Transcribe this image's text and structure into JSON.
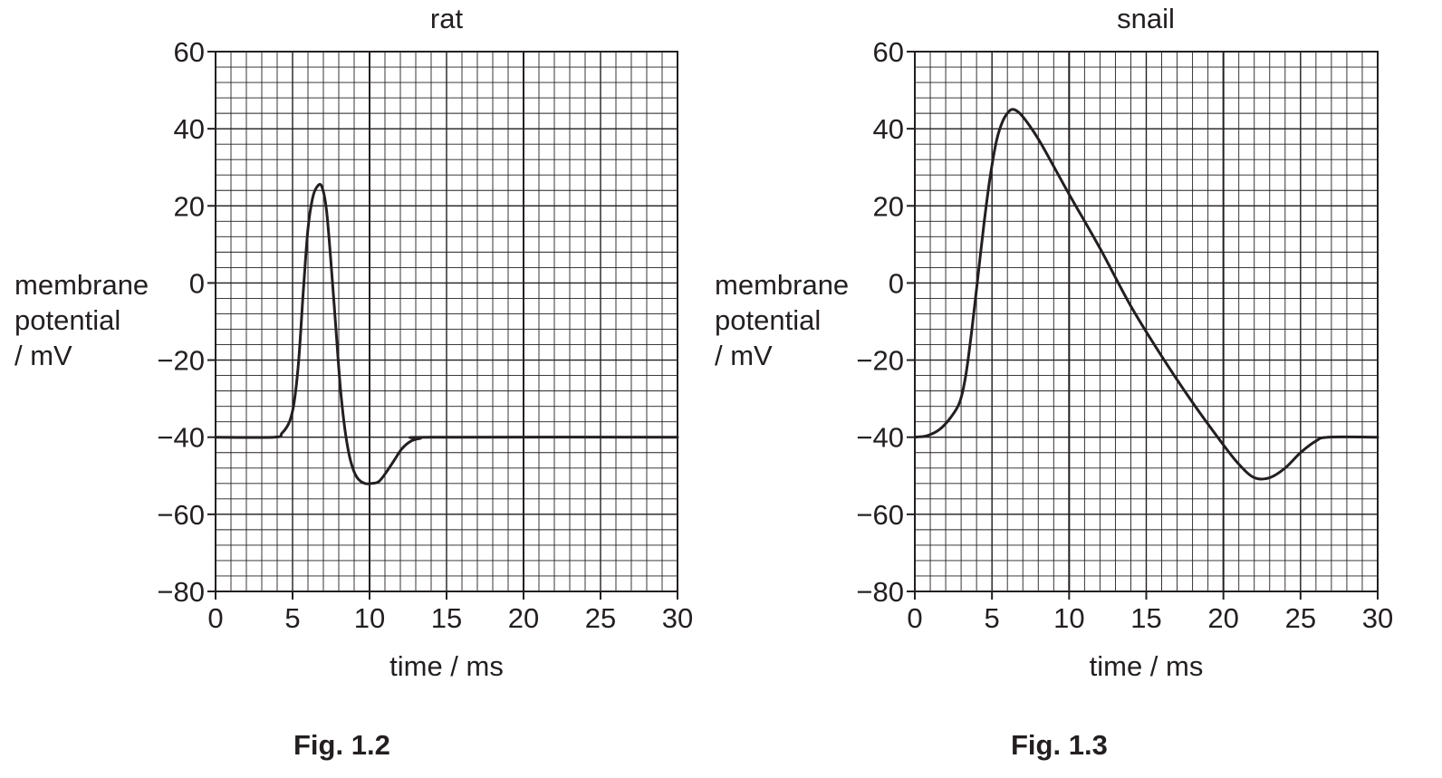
{
  "chart_data": [
    {
      "type": "line",
      "title": "rat",
      "xlabel": "time / ms",
      "ylabel": [
        "membrane",
        "potential",
        "/ mV"
      ],
      "caption": "Fig. 1.2",
      "xlim": [
        0,
        30
      ],
      "ylim": [
        -80,
        60
      ],
      "xticks": [
        0,
        5,
        10,
        15,
        20,
        25,
        30
      ],
      "yticks": [
        60,
        40,
        20,
        0,
        -20,
        -40,
        -60,
        -80
      ],
      "ytick_labels": [
        "60",
        "40",
        "20",
        "0",
        "−20",
        "−40",
        "−60",
        "−80"
      ],
      "grid": true,
      "series": [
        {
          "name": "rat",
          "x": [
            0,
            3.8,
            4.3,
            4.8,
            5.1,
            5.4,
            5.7,
            6.0,
            6.3,
            6.6,
            6.9,
            7.2,
            7.5,
            7.8,
            8.1,
            8.4,
            8.7,
            9.0,
            9.3,
            9.7,
            10.1,
            10.6,
            11.1,
            11.6,
            12.1,
            12.7,
            13.3,
            14.0,
            30
          ],
          "y": [
            -40,
            -40,
            -39,
            -36,
            -31,
            -20,
            -2,
            14,
            22,
            25,
            25,
            19,
            5,
            -11,
            -27,
            -38,
            -45,
            -49,
            -51,
            -52,
            -52,
            -51.5,
            -49,
            -46,
            -43,
            -41,
            -40.3,
            -40,
            -40
          ]
        }
      ]
    },
    {
      "type": "line",
      "title": "snail",
      "xlabel": "time / ms",
      "ylabel": [
        "membrane",
        "potential",
        "/ mV"
      ],
      "caption": "Fig. 1.3",
      "xlim": [
        0,
        30
      ],
      "ylim": [
        -80,
        60
      ],
      "xticks": [
        0,
        5,
        10,
        15,
        20,
        25,
        30
      ],
      "yticks": [
        60,
        40,
        20,
        0,
        -20,
        -40,
        -60,
        -80
      ],
      "ytick_labels": [
        "60",
        "40",
        "20",
        "0",
        "−20",
        "−40",
        "−60",
        "−80"
      ],
      "grid": true,
      "series": [
        {
          "name": "snail",
          "x": [
            0,
            0.8,
            1.6,
            2.3,
            2.9,
            3.3,
            3.7,
            4.1,
            4.5,
            4.9,
            5.3,
            5.7,
            6.1,
            6.4,
            6.8,
            7.4,
            8.2,
            10,
            12,
            14,
            16,
            18,
            20,
            21,
            22,
            23,
            24,
            25,
            26,
            26.8,
            30
          ],
          "y": [
            -40,
            -39.6,
            -38,
            -35,
            -31,
            -24,
            -12,
            2,
            16,
            28,
            37,
            42,
            44.5,
            45,
            44,
            41,
            36,
            23,
            9,
            -6,
            -19,
            -31,
            -42,
            -47,
            -50.5,
            -50.5,
            -48,
            -44,
            -41,
            -40,
            -40
          ]
        }
      ]
    }
  ]
}
